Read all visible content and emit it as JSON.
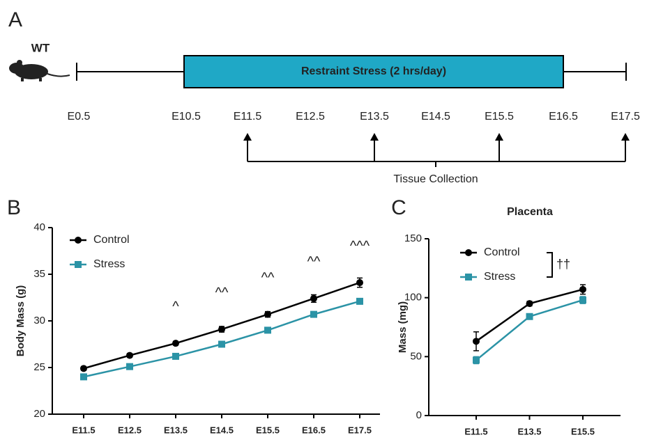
{
  "panel_labels": [
    "A",
    "B",
    "C"
  ],
  "timeline": {
    "subject": "WT",
    "treatment": "Restraint Stress (2 hrs/day)",
    "days": [
      "E0.5",
      "E10.5",
      "E11.5",
      "E12.5",
      "E13.5",
      "E14.5",
      "E15.5",
      "E16.5",
      "E17.5"
    ],
    "collection": "Tissue Collection"
  },
  "chart_data": [
    {
      "type": "line",
      "ylabel": "Body Mass (g)",
      "categories": [
        "E11.5",
        "E12.5",
        "E13.5",
        "E14.5",
        "E15.5",
        "E16.5",
        "E17.5"
      ],
      "series": [
        {
          "name": "Control",
          "color": "#000000",
          "marker": "circle",
          "values": [
            24.9,
            26.3,
            27.6,
            29.1,
            30.7,
            32.4,
            34.1
          ],
          "errors": [
            0.2,
            0.2,
            0.2,
            0.3,
            0.3,
            0.4,
            0.5
          ]
        },
        {
          "name": "Stress",
          "color": "#2b93a6",
          "marker": "square",
          "values": [
            24.0,
            25.1,
            26.2,
            27.5,
            29.0,
            30.7,
            32.1
          ],
          "errors": [
            0.2,
            0.2,
            0.2,
            0.2,
            0.2,
            0.2,
            0.3
          ]
        }
      ],
      "annotations": [
        null,
        null,
        "^",
        "^^",
        "^^",
        "^^",
        "^^^"
      ],
      "ylim": [
        20,
        40
      ],
      "yticks": [
        20,
        25,
        30,
        35,
        40
      ]
    },
    {
      "type": "line",
      "title": "Placenta",
      "ylabel": "Mass (mg)",
      "categories": [
        "E11.5",
        "E13.5",
        "E15.5"
      ],
      "series": [
        {
          "name": "Control",
          "color": "#000000",
          "marker": "circle",
          "values": [
            63,
            95,
            107
          ],
          "errors": [
            8,
            2,
            4
          ]
        },
        {
          "name": "Stress",
          "color": "#2b93a6",
          "marker": "square",
          "values": [
            47,
            84,
            98
          ],
          "errors": [
            3,
            2,
            3
          ]
        }
      ],
      "legend_annotation": "††",
      "ylim": [
        0,
        150
      ],
      "yticks": [
        0,
        50,
        100,
        150
      ]
    }
  ]
}
